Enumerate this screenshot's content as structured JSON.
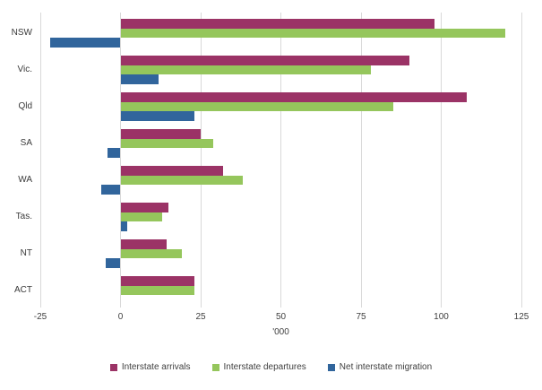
{
  "chart_data": {
    "type": "bar",
    "orientation": "horizontal",
    "title": "",
    "categories": [
      "NSW",
      "Vic.",
      "Qld",
      "SA",
      "WA",
      "Tas.",
      "NT",
      "ACT"
    ],
    "series": [
      {
        "name": "Interstate arrivals",
        "color": "#9B3366",
        "values": [
          98,
          90,
          108,
          25,
          32,
          15,
          14.5,
          23
        ]
      },
      {
        "name": "Interstate departures",
        "color": "#95C65C",
        "values": [
          120,
          78,
          85,
          29,
          38,
          13,
          19,
          23
        ]
      },
      {
        "name": "Net interstate migration",
        "color": "#31659C",
        "values": [
          -22,
          12,
          23,
          -4,
          -6,
          2,
          -4.5,
          0
        ]
      }
    ],
    "xlabel": "'000",
    "ylabel": "",
    "xlim": [
      -25,
      125
    ],
    "xticks": [
      -25,
      0,
      25,
      50,
      75,
      100,
      125
    ],
    "grid": "vertical",
    "gridline_color": "#d9d9d9",
    "legend_position": "bottom"
  }
}
